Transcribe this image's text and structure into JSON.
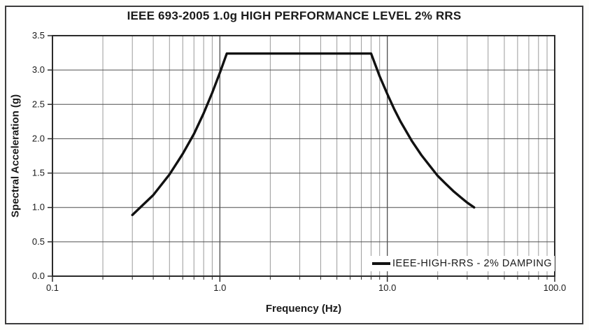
{
  "chart_data": {
    "type": "line",
    "title": "IEEE 693-2005 1.0g HIGH PERFORMANCE LEVEL 2% RRS",
    "xlabel": "Frequency (Hz)",
    "ylabel": "Spectral Acceleration (g)",
    "x_scale": "log",
    "xlim": [
      0.1,
      100
    ],
    "ylim": [
      0,
      3.5
    ],
    "x_ticks": [
      {
        "v": 0.1,
        "label": "0.1"
      },
      {
        "v": 1,
        "label": "1.0"
      },
      {
        "v": 10,
        "label": "10.0"
      },
      {
        "v": 100,
        "label": "100.0"
      }
    ],
    "y_ticks": [
      {
        "v": 0,
        "label": "0.0"
      },
      {
        "v": 0.5,
        "label": "0.5"
      },
      {
        "v": 1,
        "label": "1.0"
      },
      {
        "v": 1.5,
        "label": "1.5"
      },
      {
        "v": 2,
        "label": "2.0"
      },
      {
        "v": 2.5,
        "label": "2.5"
      },
      {
        "v": 3,
        "label": "3.0"
      },
      {
        "v": 3.5,
        "label": "3.5"
      }
    ],
    "grid": {
      "vertical": "log decades with minor lines 2-9",
      "horizontal_step": 0.5
    },
    "legend": {
      "position": "bottom-right",
      "entries": [
        {
          "label": "IEEE-HIGH-RRS - 2% DAMPING",
          "color": "#111111"
        }
      ]
    },
    "series": [
      {
        "name": "IEEE-HIGH-RRS - 2% DAMPING",
        "color": "#111111",
        "points": [
          [
            0.3,
            0.89
          ],
          [
            0.4,
            1.18
          ],
          [
            0.5,
            1.48
          ],
          [
            0.6,
            1.78
          ],
          [
            0.7,
            2.07
          ],
          [
            0.8,
            2.37
          ],
          [
            0.9,
            2.67
          ],
          [
            1.0,
            2.96
          ],
          [
            1.1,
            3.24
          ],
          [
            8.0,
            3.24
          ],
          [
            9.0,
            2.91
          ],
          [
            10.0,
            2.65
          ],
          [
            11.0,
            2.43
          ],
          [
            12.0,
            2.25
          ],
          [
            14.0,
            1.97
          ],
          [
            16.0,
            1.76
          ],
          [
            18.0,
            1.6
          ],
          [
            20.0,
            1.46
          ],
          [
            22.0,
            1.36
          ],
          [
            25.0,
            1.23
          ],
          [
            28.0,
            1.13
          ],
          [
            30.0,
            1.07
          ],
          [
            33.0,
            1.0
          ]
        ]
      }
    ]
  },
  "colors": {
    "curve": "#111111",
    "grid_minor": "#9a9a9a",
    "grid_major": "#4f4f4f",
    "grid_horizontal": "#4f4f4f",
    "axis": "#2b2b2b",
    "frame": "#3c3c3c",
    "text": "#1a1a1a",
    "background": "#ffffff"
  }
}
